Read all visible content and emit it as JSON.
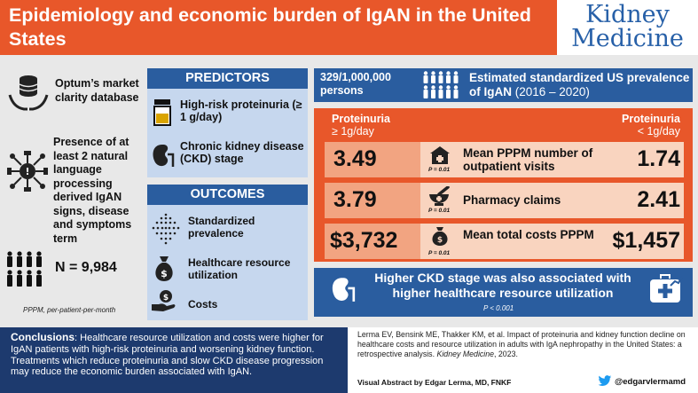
{
  "header": {
    "title": "Epidemiology and economic burden of IgAN in the United States",
    "logo_line1": "Kidney",
    "logo_line2": "Medicine"
  },
  "left": {
    "database": "Optum’s market clarity database",
    "criteria": "Presence of at least 2 natural language processing derived IgAN signs, disease and symptoms term",
    "n_label": "N = 9,984",
    "footnote": "PPPM, per-patient-per-month"
  },
  "predictors": {
    "heading": "PREDICTORS",
    "items": [
      "High-risk proteinuria (≥ 1 g/day)",
      "Chronic kidney disease (CKD) stage"
    ]
  },
  "outcomes": {
    "heading": "OUTCOMES",
    "items": [
      "Standardized prevalence",
      "Healthcare resource utilization",
      "Costs"
    ]
  },
  "prevalence": {
    "count": "329/1,000,000 persons",
    "text_bold": "Estimated standardized US prevalence of IgAN",
    "years": "(2016 – 2020)"
  },
  "comparison": {
    "left_header_1": "Proteinuria",
    "left_header_2": "≥ 1g/day",
    "right_header_1": "Proteinuria",
    "right_header_2": "< 1g/day",
    "rows": [
      {
        "left": "3.49",
        "label": "Mean PPPM number of outpatient visits",
        "p": "P = 0.01",
        "right": "1.74"
      },
      {
        "left": "3.79",
        "label": "Pharmacy claims",
        "p": "P = 0.01",
        "right": "2.41"
      },
      {
        "left": "$3,732",
        "label": "Mean total costs PPPM",
        "p": "P = 0.01",
        "right": "$1,457"
      }
    ]
  },
  "ckd": {
    "text": "Higher CKD stage was also associated with higher healthcare resource utilization",
    "p": "P < 0.001"
  },
  "conclusions": {
    "label": "Conclusions",
    "text": ": Healthcare resource utilization and costs were higher for IgAN patients with high-risk proteinuria and worsening kidney function. Treatments which reduce proteinuria and slow CKD disease progression may reduce the economic burden associated with IgAN."
  },
  "citation": {
    "text": "Lerma EV, Bensink ME, Thakker KM, et al. Impact of proteinuria and kidney function decline on healthcare costs and resource utilization in adults with IgA nephropathy in the United States: a retrospective analysis.",
    "journal": "Kidney Medicine",
    "year": ", 2023.",
    "credit": "Visual Abstract by Edgar Lerma, MD, FNKF",
    "twitter": "@edgarvlermamd"
  },
  "colors": {
    "orange": "#e8572a",
    "dark_blue": "#2a5d9f",
    "navy": "#1d3a6e",
    "light_blue": "#c6d7ee",
    "salmon": "#f2a481",
    "peach": "#f9d4bf"
  }
}
